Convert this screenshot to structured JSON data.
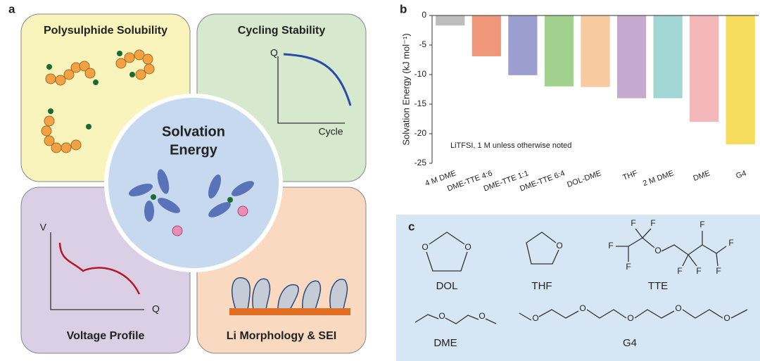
{
  "panel_labels": {
    "a": "a",
    "b": "b",
    "c": "c"
  },
  "panel_a": {
    "center_lines": [
      "Solvation",
      "Energy"
    ],
    "quadrants": [
      "Polysulphide Solubility",
      "Cycling Stability",
      "Voltage Profile",
      "Li Morphology & SEI"
    ],
    "cycling_axes": {
      "y": "Q",
      "x": "Cycle"
    },
    "voltage_axes": {
      "y": "V",
      "x": "Q"
    }
  },
  "chart_data": {
    "type": "bar",
    "categories": [
      "4 M DME",
      "DME-TTE 4:6",
      "DME-TTE 1:1",
      "DME-TTE 6:4",
      "DOL-DME",
      "THF",
      "2 M DME",
      "DME",
      "G4"
    ],
    "values": [
      -1.7,
      -6.9,
      -10.1,
      -12.0,
      -12.1,
      -14.0,
      -14.0,
      -18.0,
      -21.8
    ],
    "colors": [
      "#bdbdbd",
      "#f0977c",
      "#9c9ecf",
      "#a2d18f",
      "#f8caa0",
      "#c5a9cf",
      "#a2d6d4",
      "#f5b8ba",
      "#f6dc5c"
    ],
    "ylabel": "Solvation Energy (kJ mol⁻¹)",
    "annotation": "LiTFSI, 1 M unless otherwise noted",
    "ylim": [
      -25,
      0
    ],
    "yticks": [
      0,
      -5,
      -10,
      -15,
      -20,
      -25
    ]
  },
  "panel_c": {
    "molecules": [
      "DOL",
      "THF",
      "TTE",
      "DME",
      "G4"
    ],
    "atoms": {
      "O": "O",
      "F": "F"
    }
  }
}
